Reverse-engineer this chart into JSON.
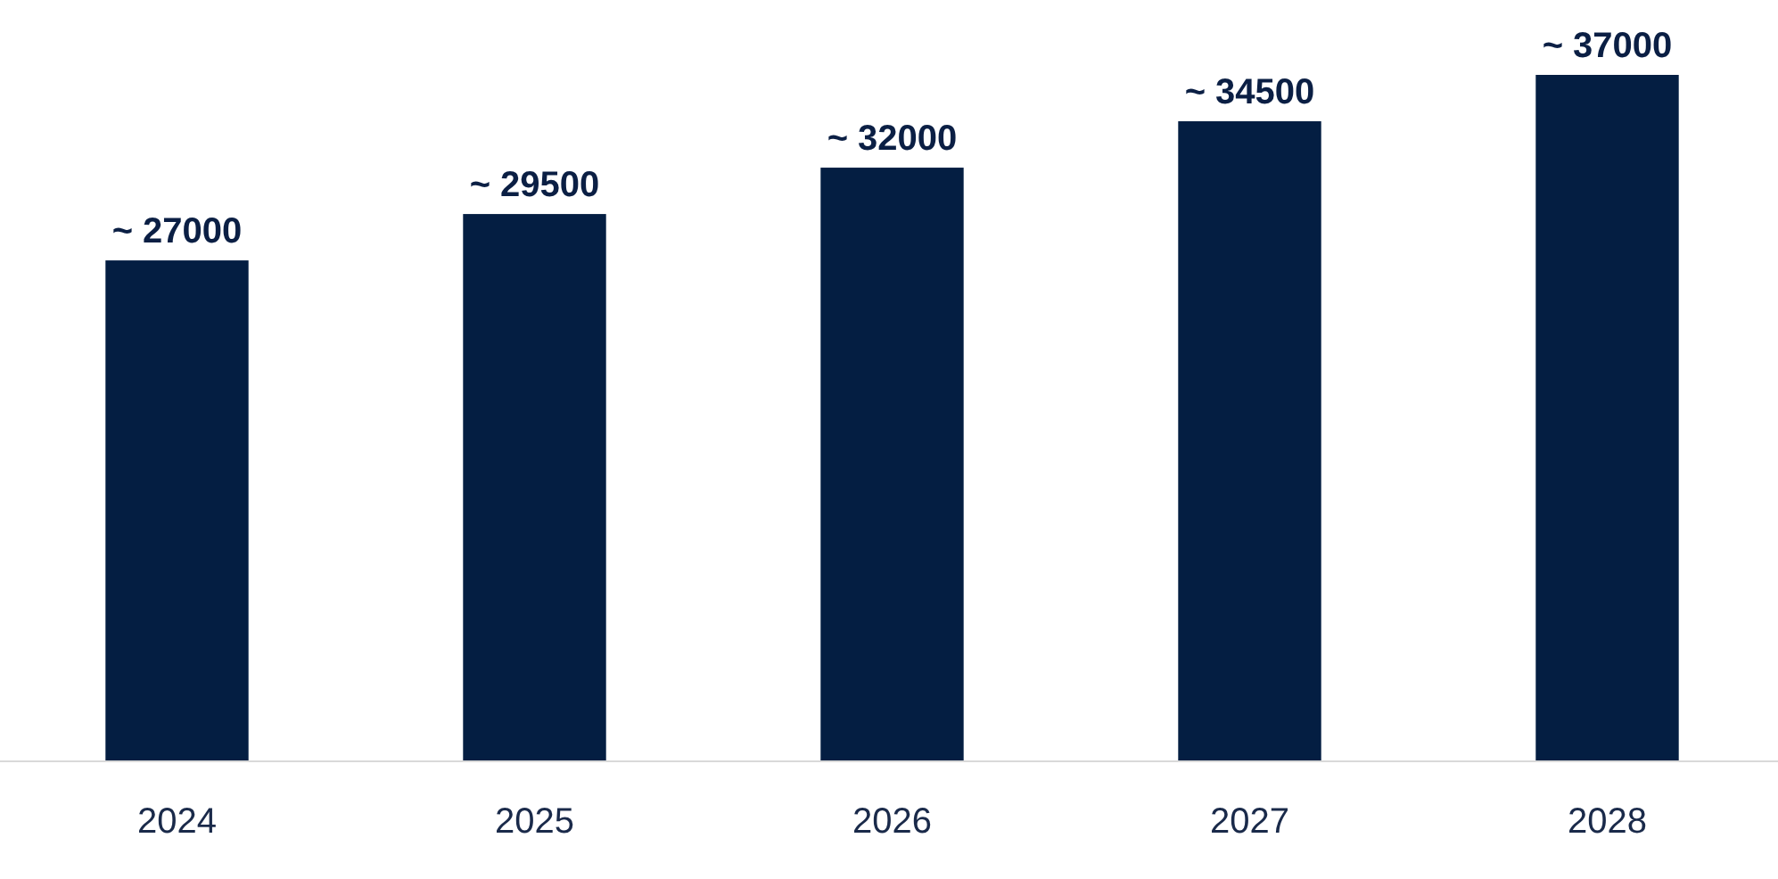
{
  "chart_data": {
    "type": "bar",
    "categories": [
      "2024",
      "2025",
      "2026",
      "2027",
      "2028"
    ],
    "values": [
      27000,
      29500,
      32000,
      34500,
      37000
    ],
    "color": "#041e42",
    "value_labels": [
      "~ 27000",
      "~ 29500",
      "~ 32000",
      "~ 34500",
      "~ 37000"
    ]
  }
}
